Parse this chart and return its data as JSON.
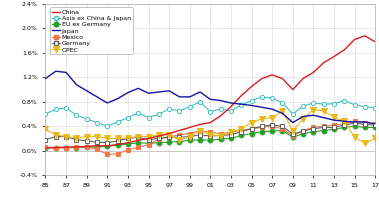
{
  "years": [
    1985,
    1986,
    1987,
    1988,
    1989,
    1990,
    1991,
    1992,
    1993,
    1994,
    1995,
    1996,
    1997,
    1998,
    1999,
    2000,
    2001,
    2002,
    2003,
    2004,
    2005,
    2006,
    2007,
    2008,
    2009,
    2010,
    2011,
    2012,
    2013,
    2014,
    2015,
    2016,
    2017
  ],
  "china": [
    0.04,
    0.05,
    0.06,
    0.06,
    0.07,
    0.08,
    0.08,
    0.1,
    0.13,
    0.17,
    0.2,
    0.24,
    0.28,
    0.33,
    0.38,
    0.43,
    0.46,
    0.57,
    0.72,
    0.9,
    1.05,
    1.18,
    1.24,
    1.18,
    1.0,
    1.18,
    1.28,
    1.44,
    1.54,
    1.65,
    1.82,
    1.88,
    1.78
  ],
  "asia_ex": [
    0.6,
    0.68,
    0.7,
    0.58,
    0.52,
    0.46,
    0.4,
    0.47,
    0.54,
    0.62,
    0.54,
    0.6,
    0.68,
    0.65,
    0.72,
    0.8,
    0.64,
    0.68,
    0.65,
    0.75,
    0.82,
    0.88,
    0.86,
    0.78,
    0.6,
    0.73,
    0.78,
    0.76,
    0.77,
    0.82,
    0.75,
    0.72,
    0.7
  ],
  "eu_ex": [
    0.05,
    0.05,
    0.05,
    0.05,
    0.06,
    0.06,
    0.07,
    0.09,
    0.11,
    0.13,
    0.12,
    0.13,
    0.14,
    0.15,
    0.17,
    0.18,
    0.17,
    0.19,
    0.2,
    0.25,
    0.28,
    0.31,
    0.32,
    0.33,
    0.22,
    0.28,
    0.31,
    0.33,
    0.35,
    0.38,
    0.4,
    0.38,
    0.38
  ],
  "japan": [
    1.18,
    1.3,
    1.28,
    1.08,
    0.98,
    0.88,
    0.78,
    0.85,
    0.95,
    1.02,
    0.94,
    0.96,
    0.98,
    0.88,
    0.88,
    0.96,
    0.84,
    0.82,
    0.78,
    0.76,
    0.74,
    0.71,
    0.68,
    0.61,
    0.46,
    0.56,
    0.58,
    0.54,
    0.5,
    0.48,
    0.47,
    0.47,
    0.44
  ],
  "mexico": [
    0.06,
    0.05,
    0.05,
    0.06,
    0.06,
    0.02,
    -0.06,
    -0.05,
    0.01,
    0.06,
    0.09,
    0.19,
    0.23,
    0.26,
    0.28,
    0.33,
    0.3,
    0.28,
    0.3,
    0.33,
    0.36,
    0.38,
    0.4,
    0.36,
    0.24,
    0.33,
    0.38,
    0.4,
    0.42,
    0.44,
    0.48,
    0.46,
    0.44
  ],
  "germany": [
    0.18,
    0.23,
    0.23,
    0.18,
    0.16,
    0.14,
    0.13,
    0.16,
    0.2,
    0.22,
    0.18,
    0.2,
    0.22,
    0.22,
    0.23,
    0.26,
    0.24,
    0.25,
    0.26,
    0.31,
    0.36,
    0.4,
    0.42,
    0.4,
    0.27,
    0.32,
    0.36,
    0.38,
    0.38,
    0.42,
    0.45,
    0.43,
    0.42
  ],
  "opec": [
    0.35,
    0.26,
    0.23,
    0.21,
    0.23,
    0.23,
    0.2,
    0.2,
    0.21,
    0.23,
    0.23,
    0.26,
    0.26,
    0.17,
    0.23,
    0.33,
    0.26,
    0.24,
    0.3,
    0.36,
    0.46,
    0.52,
    0.54,
    0.65,
    0.32,
    0.52,
    0.67,
    0.65,
    0.55,
    0.48,
    0.22,
    0.12,
    0.2
  ],
  "china_color": "#d42020",
  "asia_color": "#40c0c0",
  "eu_color": "#28a028",
  "japan_color": "#1414a0",
  "mexico_color": "#f07848",
  "germany_color": "#606060",
  "opec_color": "#e8b818",
  "ylim_min": -0.4,
  "ylim_max": 2.4,
  "xlim_min": 1985,
  "xlim_max": 2017,
  "yticks": [
    -0.4,
    0.0,
    0.4,
    0.8,
    1.2,
    1.6,
    2.0,
    2.4
  ],
  "ytick_labels": [
    "-0.4%",
    "0.0%",
    "0.4%",
    "0.8%",
    "1.2%",
    "1.6%",
    "2.0%",
    "2.4%"
  ],
  "xtick_years": [
    1985,
    1987,
    1989,
    1991,
    1993,
    1995,
    1997,
    1999,
    2001,
    2003,
    2005,
    2007,
    2009,
    2011,
    2013,
    2015,
    2017
  ],
  "xtick_labels": [
    "85",
    "87",
    "89",
    "91",
    "93",
    "95",
    "97",
    "99",
    "01",
    "03",
    "05",
    "07",
    "09",
    "11",
    "13",
    "15",
    "17"
  ],
  "legend_labels": [
    "China",
    "Asia ex China & Japan",
    "EU ex Germany",
    "Japan",
    "Mexico",
    "Germany",
    "OPEC"
  ]
}
